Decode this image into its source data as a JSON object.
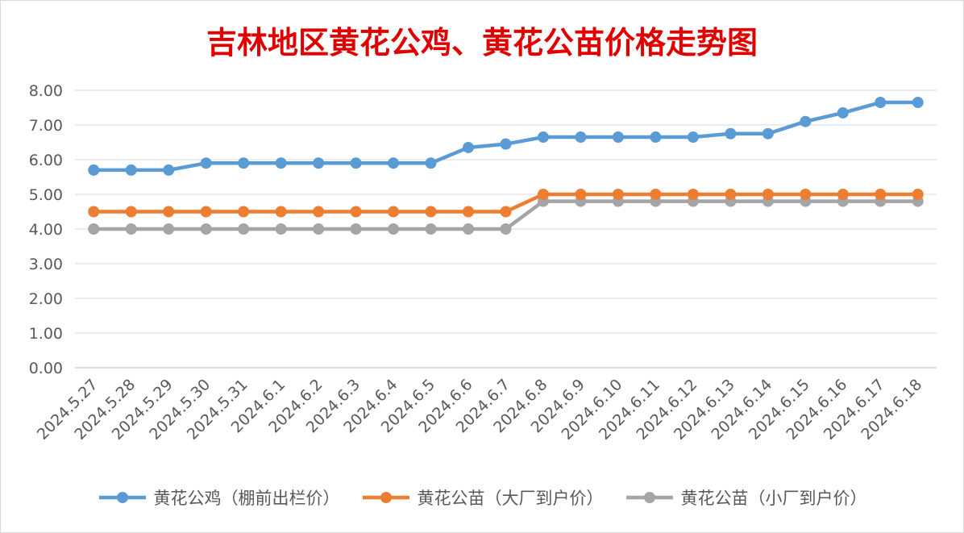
{
  "chart_data": {
    "type": "line",
    "title": "吉林地区黄花公鸡、黄花公苗价格走势图",
    "xlabel": "",
    "ylabel": "",
    "ylim": [
      0,
      8
    ],
    "yticks": [
      "0.00",
      "1.00",
      "2.00",
      "3.00",
      "4.00",
      "5.00",
      "6.00",
      "7.00",
      "8.00"
    ],
    "grid": true,
    "legend_position": "bottom",
    "categories": [
      "2024.5.27",
      "2024.5.28",
      "2024.5.29",
      "2024.5.30",
      "2024.5.31",
      "2024.6.1",
      "2024.6.2",
      "2024.6.3",
      "2024.6.4",
      "2024.6.5",
      "2024.6.6",
      "2024.6.7",
      "2024.6.8",
      "2024.6.9",
      "2024.6.10",
      "2024.6.11",
      "2024.6.12",
      "2024.6.13",
      "2024.6.14",
      "2024.6.15",
      "2024.6.16",
      "2024.6.17",
      "2024.6.18"
    ],
    "series": [
      {
        "name": "黄花公鸡（棚前出栏价）",
        "color": "#5b9bd5",
        "values": [
          5.7,
          5.7,
          5.7,
          5.9,
          5.9,
          5.9,
          5.9,
          5.9,
          5.9,
          5.9,
          6.35,
          6.45,
          6.65,
          6.65,
          6.65,
          6.65,
          6.65,
          6.75,
          6.75,
          7.1,
          7.35,
          7.65,
          7.65
        ]
      },
      {
        "name": "黄花公苗（大厂到户价）",
        "color": "#ed7d31",
        "values": [
          4.5,
          4.5,
          4.5,
          4.5,
          4.5,
          4.5,
          4.5,
          4.5,
          4.5,
          4.5,
          4.5,
          4.5,
          5.0,
          5.0,
          5.0,
          5.0,
          5.0,
          5.0,
          5.0,
          5.0,
          5.0,
          5.0,
          5.0
        ]
      },
      {
        "name": "黄花公苗（小厂到户价）",
        "color": "#a5a5a5",
        "values": [
          4.0,
          4.0,
          4.0,
          4.0,
          4.0,
          4.0,
          4.0,
          4.0,
          4.0,
          4.0,
          4.0,
          4.0,
          4.8,
          4.8,
          4.8,
          4.8,
          4.8,
          4.8,
          4.8,
          4.8,
          4.8,
          4.8,
          4.8
        ]
      }
    ]
  }
}
